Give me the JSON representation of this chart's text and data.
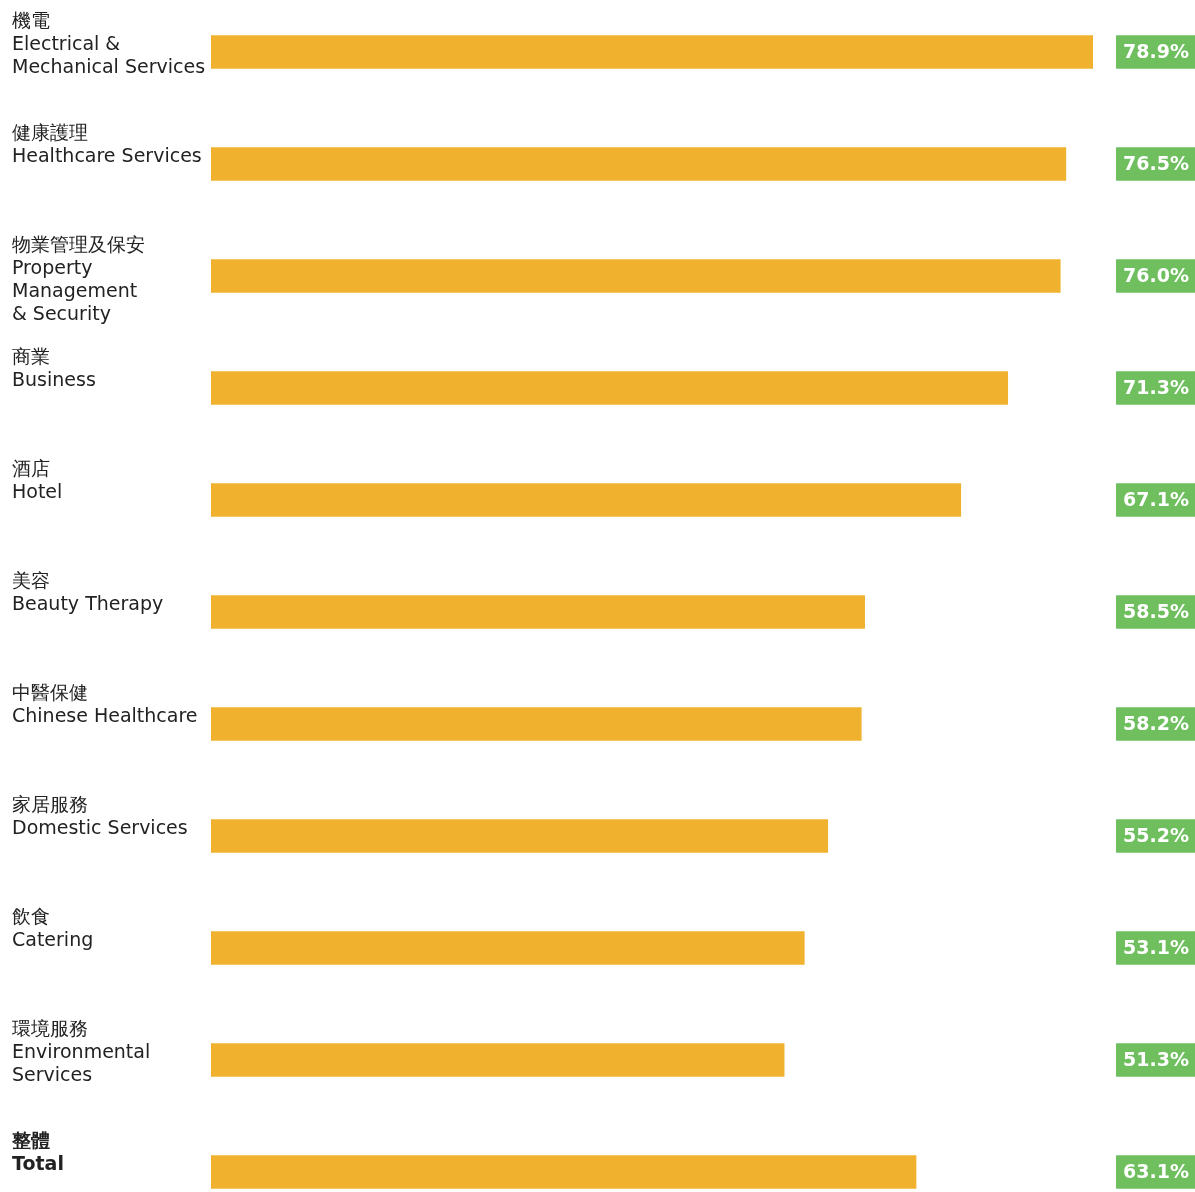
{
  "chart_data": {
    "type": "bar",
    "orientation": "horizontal",
    "categories": [
      "機電\nElectrical &\nMechanical Services",
      "健康護理\nHealthcare Services",
      "物業管理及保安\nProperty\nManagement\n& Security",
      "商業\nBusiness",
      "酒店\nHotel",
      "美容\nBeauty Therapy",
      "中醫保健\nChinese Healthcare",
      "家居服務\nDomestic Services",
      "飲食\nCatering",
      "環境服務\nEnvironmental\nServices",
      "整體\nTotal"
    ],
    "values": [
      78.9,
      76.5,
      76.0,
      71.3,
      67.1,
      58.5,
      58.2,
      55.2,
      53.1,
      51.3,
      63.1
    ],
    "value_labels": [
      "78.9%",
      "76.5%",
      "76.0%",
      "71.3%",
      "67.1%",
      "58.5%",
      "58.2%",
      "55.2%",
      "53.1%",
      "51.3%",
      "63.1%"
    ],
    "color": "#f0b12e",
    "tick_labels": false
  }
}
